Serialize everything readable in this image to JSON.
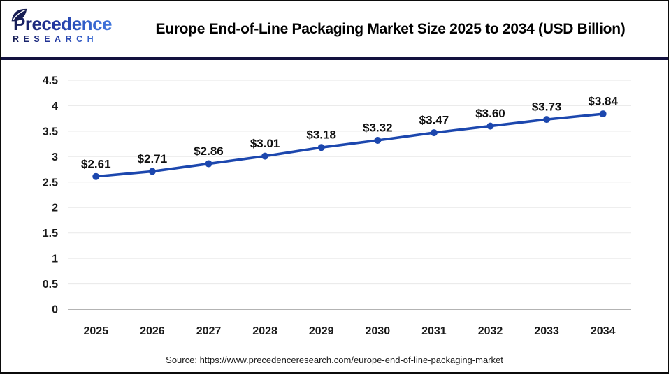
{
  "header": {
    "logo": {
      "line1": "Precedence",
      "line2": "RESEARCH"
    },
    "title": "Europe End-of-Line Packaging Market Size 2025 to 2034 (USD Billion)"
  },
  "footer": {
    "source": "Source: https://www.precedenceresearch.com/europe-end-of-line-packaging-market"
  },
  "colors": {
    "line": "#1c47ae",
    "marker": "#1c47ae",
    "grid": "#ebebeb",
    "zero_line": "#b3b3b3",
    "tick_text": "#1a1a1a",
    "separator": "#13123f",
    "logo_navy": "#161c52",
    "logo_blue": "#3a6ed8"
  },
  "chart_data": {
    "type": "line",
    "title": "Europe End-of-Line Packaging Market Size 2025 to 2034 (USD Billion)",
    "categories": [
      "2025",
      "2026",
      "2027",
      "2028",
      "2029",
      "2030",
      "2031",
      "2032",
      "2033",
      "2034"
    ],
    "series": [
      {
        "name": "Europe End-of-Line Packaging Market Size (USD Billion)",
        "values": [
          2.61,
          2.71,
          2.86,
          3.01,
          3.18,
          3.32,
          3.47,
          3.6,
          3.73,
          3.84
        ],
        "labels": [
          "$2.61",
          "$2.71",
          "$2.86",
          "$3.01",
          "$3.18",
          "$3.32",
          "$3.47",
          "$3.60",
          "$3.73",
          "$3.84"
        ]
      }
    ],
    "xlabel": "",
    "ylabel": "",
    "ylim": [
      0,
      4.5
    ],
    "ytick_step": 0.5,
    "yticks": [
      "0",
      "0.5",
      "1",
      "1.5",
      "2",
      "2.5",
      "3",
      "3.5",
      "4",
      "4.5"
    ],
    "grid": "horizontal",
    "legend_position": "none",
    "marker": "circle"
  }
}
